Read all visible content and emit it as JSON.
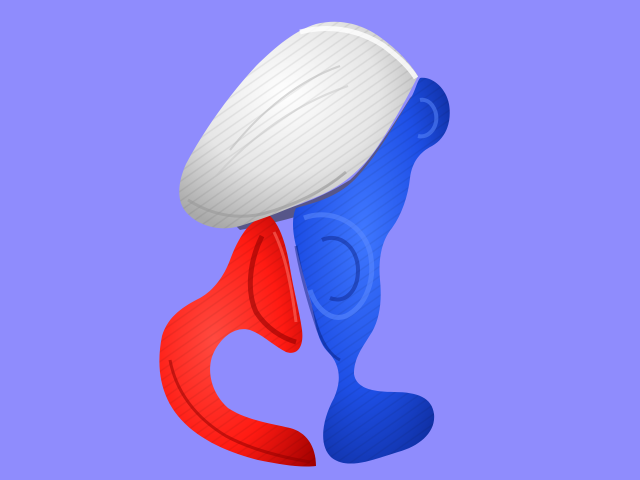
{
  "viewport": {
    "background_color": "#8f8cfd"
  },
  "model": {
    "segments": [
      {
        "name": "ilium-segment",
        "color": "#e6e6e6",
        "shade": "#a9a9a9"
      },
      {
        "name": "pubis-ischium-segment",
        "color": "#1e4fe6",
        "shade": "#0b2690"
      },
      {
        "name": "acetabulum-segment",
        "color": "#ff1a12",
        "shade": "#a10000"
      }
    ]
  }
}
